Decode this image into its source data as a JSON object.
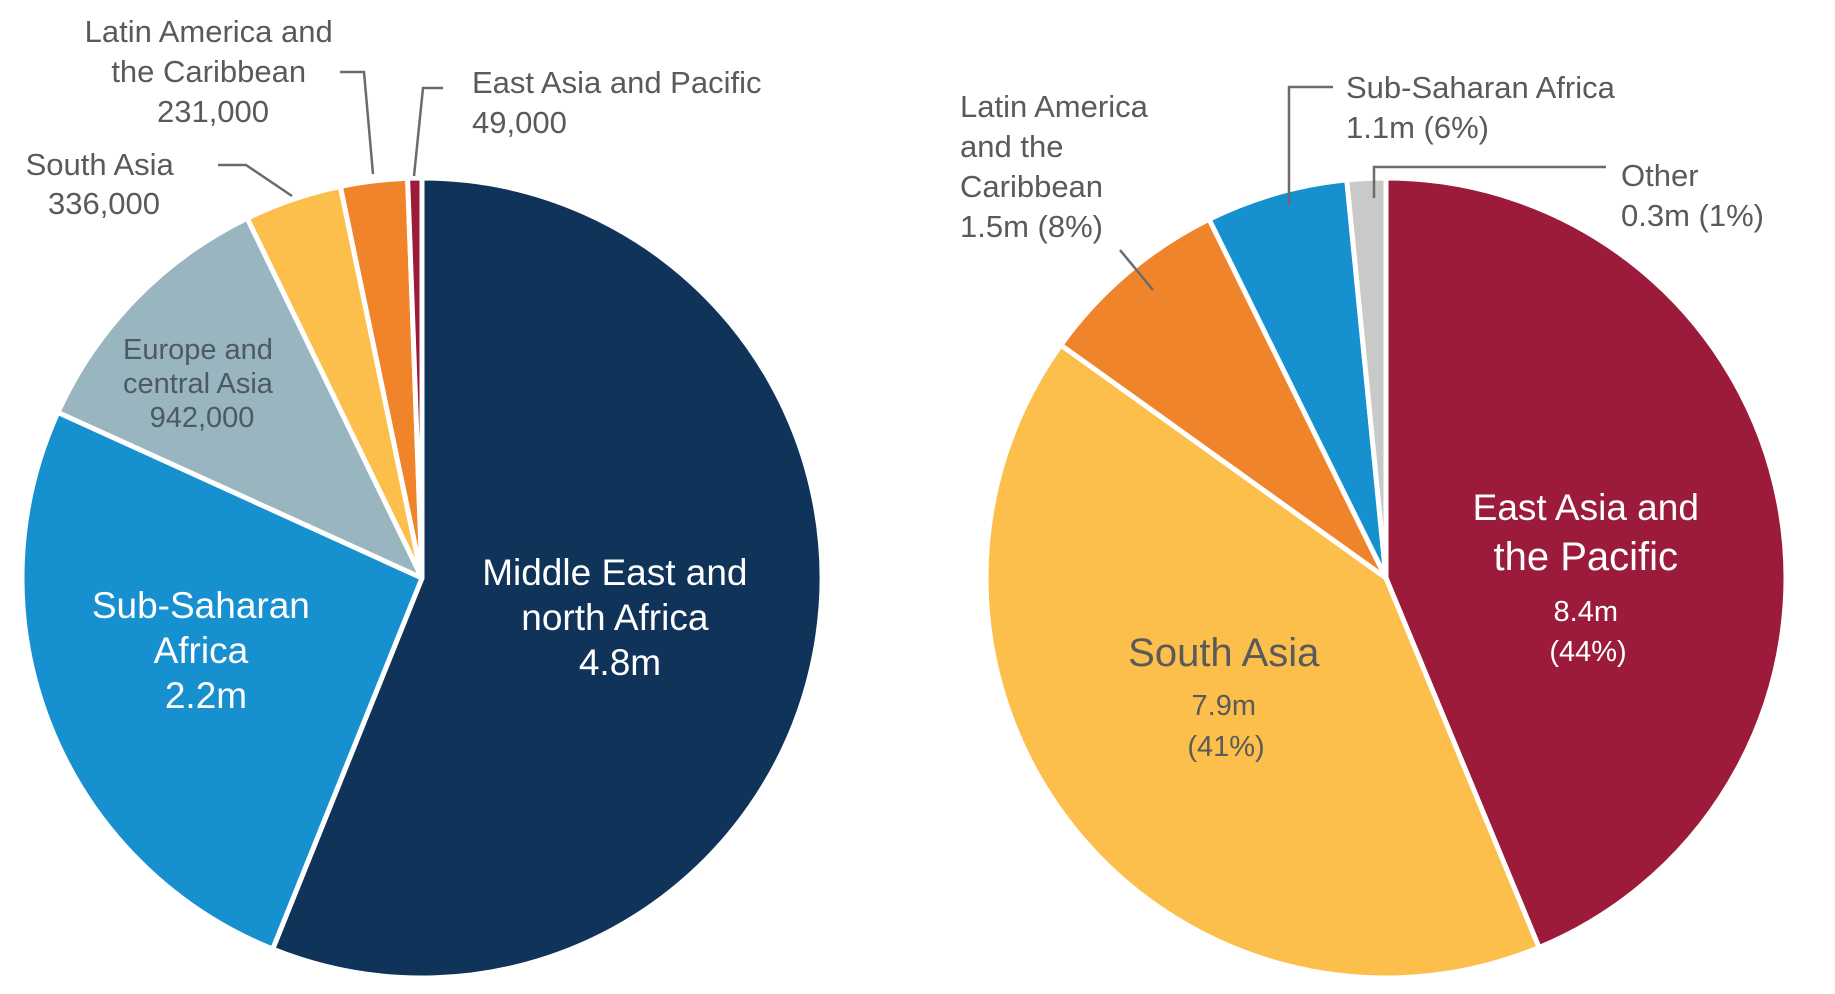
{
  "colors": {
    "navy": "#10335a",
    "blue": "#1790cf",
    "grey_blue": "#98b5c0",
    "yellow": "#fdbf4b",
    "orange": "#f0842a",
    "crimson": "#9c1a3a",
    "light_grey": "#c9c9c7",
    "label_grey": "#5a5a5a",
    "white": "#ffffff"
  },
  "chart_data": [
    {
      "type": "pie",
      "start": "12 o'clock, clockwise",
      "slices": [
        {
          "name": "Middle East and north Africa",
          "value": 4800000,
          "value_label": "4.8m",
          "color": "navy",
          "label_lines": [
            "Middle East and",
            "north Africa",
            "4.8m"
          ]
        },
        {
          "name": "Sub-Saharan Africa",
          "value": 2200000,
          "value_label": "2.2m",
          "color": "blue",
          "label_lines": [
            "Sub-Saharan",
            "Africa",
            "2.2m"
          ]
        },
        {
          "name": "Europe and central Asia",
          "value": 942000,
          "value_label": "942,000",
          "color": "grey_blue",
          "label_lines": [
            "Europe and",
            "central Asia",
            "942,000"
          ]
        },
        {
          "name": "South Asia",
          "value": 336000,
          "value_label": "336,000",
          "color": "yellow",
          "label_lines": [
            "South Asia",
            "336,000"
          ]
        },
        {
          "name": "Latin America and the Caribbean",
          "value": 231000,
          "value_label": "231,000",
          "color": "orange",
          "label_lines": [
            "Latin America and",
            "the Caribbean",
            "231,000"
          ]
        },
        {
          "name": "East Asia and Pacific",
          "value": 49000,
          "value_label": "49,000",
          "color": "crimson",
          "label_lines": [
            "East Asia and Pacific",
            "49,000"
          ]
        }
      ]
    },
    {
      "type": "pie",
      "start": "12 o'clock, clockwise",
      "slices": [
        {
          "name": "East Asia and the Pacific",
          "value": 8.4,
          "percent": 44,
          "value_label": "8.4m",
          "percent_label": "(44%)",
          "color": "crimson",
          "label_lines": [
            "East Asia and",
            "the Pacific",
            "8.4m",
            "(44%)"
          ]
        },
        {
          "name": "South Asia",
          "value": 7.9,
          "percent": 41,
          "value_label": "7.9m",
          "percent_label": "(41%)",
          "color": "yellow",
          "label_lines": [
            "South Asia",
            "7.9m",
            "(41%)"
          ]
        },
        {
          "name": "Latin America and the Caribbean",
          "value": 1.5,
          "percent": 8,
          "value_label": "1.5m (8%)",
          "color": "orange",
          "label_lines": [
            "Latin America",
            "and the",
            "Caribbean",
            "1.5m (8%)"
          ]
        },
        {
          "name": "Sub-Saharan Africa",
          "value": 1.1,
          "percent": 6,
          "value_label": "1.1m (6%)",
          "color": "blue",
          "label_lines": [
            "Sub-Saharan Africa",
            "1.1m (6%)"
          ]
        },
        {
          "name": "Other",
          "value": 0.3,
          "percent": 1,
          "value_label": "0.3m (1%)",
          "color": "light_grey",
          "label_lines": [
            "Other",
            "0.3m (1%)"
          ]
        }
      ]
    }
  ]
}
